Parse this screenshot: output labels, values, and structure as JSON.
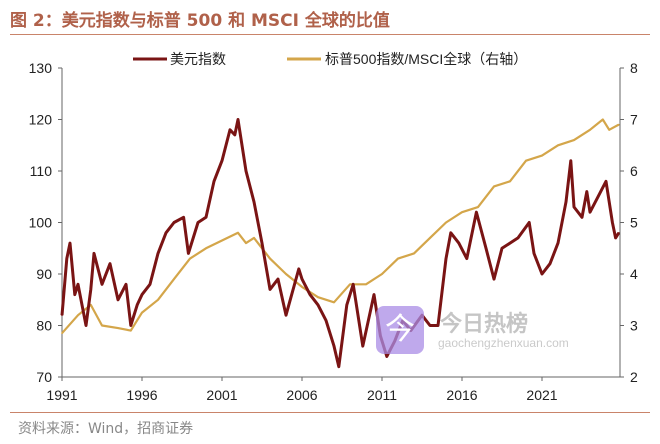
{
  "title": "图 2：美元指数与标普 500 和 MSCI 全球的比值",
  "source": "资料来源：Wind，招商证券",
  "watermark": {
    "icon": "今",
    "name": "今日热榜",
    "url": "gaochengzhenxuan.com"
  },
  "chart_data": {
    "type": "line",
    "title": "",
    "legend_position": "top",
    "grid": false,
    "x_ticks": [
      "1991",
      "1996",
      "2001",
      "2006",
      "2011",
      "2016",
      "2021"
    ],
    "xlim": [
      1991,
      2025.9
    ],
    "left_axis": {
      "ylim": [
        70,
        130
      ],
      "ticks": [
        "70",
        "80",
        "90",
        "100",
        "110",
        "120",
        "130"
      ]
    },
    "right_axis": {
      "ylim": [
        2,
        8
      ],
      "ticks": [
        "2",
        "3",
        "4",
        "5",
        "6",
        "7",
        "8"
      ]
    },
    "series": [
      {
        "name": "美元指数",
        "axis": "left",
        "color": "#7a1414",
        "x": [
          1991.0,
          1991.3,
          1991.5,
          1991.8,
          1992.0,
          1992.5,
          1992.8,
          1993.0,
          1993.5,
          1994.0,
          1994.5,
          1995.0,
          1995.3,
          1995.7,
          1996.0,
          1996.5,
          1997.0,
          1997.5,
          1998.0,
          1998.6,
          1998.9,
          1999.5,
          2000.0,
          2000.5,
          2001.0,
          2001.5,
          2001.8,
          2002.0,
          2002.5,
          2003.0,
          2003.5,
          2004.0,
          2004.5,
          2005.0,
          2005.8,
          2006.0,
          2006.5,
          2007.0,
          2007.5,
          2008.0,
          2008.3,
          2008.8,
          2009.2,
          2009.8,
          2010.5,
          2010.9,
          2011.3,
          2011.8,
          2012.3,
          2012.8,
          2013.5,
          2014.0,
          2014.5,
          2015.0,
          2015.3,
          2015.8,
          2016.3,
          2016.9,
          2017.5,
          2018.0,
          2018.5,
          2019.0,
          2019.5,
          2020.2,
          2020.5,
          2021.0,
          2021.5,
          2022.0,
          2022.5,
          2022.8,
          2023.0,
          2023.5,
          2023.8,
          2024.0,
          2024.5,
          2025.0,
          2025.4,
          2025.6,
          2025.8
        ],
        "values": [
          82,
          93,
          96,
          86,
          88,
          80,
          87,
          94,
          88,
          92,
          85,
          88,
          80,
          84,
          86,
          88,
          94,
          98,
          100,
          101,
          94,
          100,
          101,
          108,
          112,
          118,
          117,
          120,
          110,
          104,
          96,
          87,
          89,
          82,
          91,
          89,
          86,
          84,
          81,
          76,
          72,
          84,
          88,
          76,
          86,
          78,
          74,
          77,
          81,
          79,
          82,
          80,
          80,
          93,
          98,
          96,
          93,
          102,
          95,
          89,
          95,
          96,
          97,
          100,
          94,
          90,
          92,
          96,
          104,
          112,
          103,
          101,
          106,
          102,
          105,
          108,
          100,
          97,
          98
        ]
      },
      {
        "name": "标普500指数/MSCI全球（右轴）",
        "axis": "right",
        "color": "#d4a64a",
        "x": [
          1991.0,
          1992.0,
          1992.8,
          1993.5,
          1994.5,
          1995.3,
          1996.0,
          1997.0,
          1998.0,
          1999.0,
          2000.0,
          2001.0,
          2002.0,
          2002.5,
          2003.0,
          2004.0,
          2005.0,
          2006.0,
          2007.0,
          2008.0,
          2009.0,
          2010.0,
          2011.0,
          2012.0,
          2013.0,
          2014.0,
          2015.0,
          2016.0,
          2017.0,
          2018.0,
          2019.0,
          2020.0,
          2021.0,
          2022.0,
          2023.0,
          2024.0,
          2024.8,
          2025.2,
          2025.8
        ],
        "values": [
          2.85,
          3.2,
          3.4,
          3.0,
          2.95,
          2.9,
          3.25,
          3.5,
          3.9,
          4.3,
          4.5,
          4.65,
          4.8,
          4.6,
          4.7,
          4.3,
          4.0,
          3.75,
          3.55,
          3.45,
          3.8,
          3.8,
          4.0,
          4.3,
          4.4,
          4.7,
          5.0,
          5.2,
          5.3,
          5.7,
          5.8,
          6.2,
          6.3,
          6.5,
          6.6,
          6.8,
          7.0,
          6.8,
          6.9
        ]
      }
    ]
  }
}
